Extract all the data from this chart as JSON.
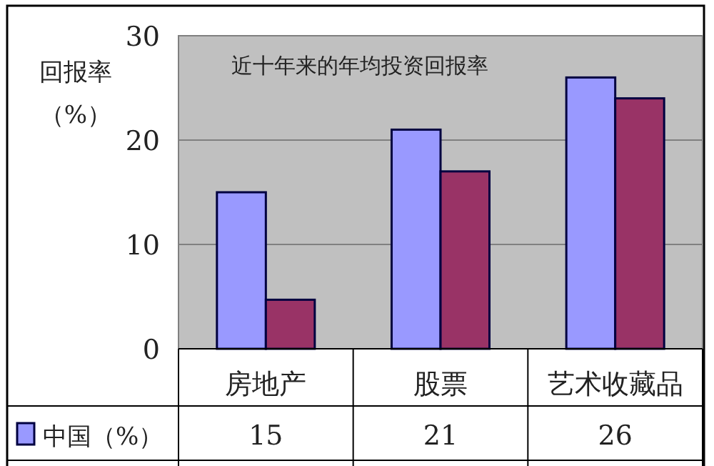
{
  "chart_data": {
    "type": "bar",
    "title": "近十年来的年均投资回报率",
    "ylabel": "回报率（%）",
    "categories": [
      "房地产",
      "股票",
      "艺术收藏品"
    ],
    "series": [
      {
        "name": "中国（%）",
        "color": "#9999ff",
        "values": [
          15,
          21,
          26
        ],
        "value_labels": [
          "15",
          "21",
          "26"
        ]
      },
      {
        "color": "#993366",
        "values": [
          4.7,
          17,
          24
        ]
      }
    ],
    "ylim": [
      0,
      30
    ],
    "yticks": [
      0,
      10,
      20,
      30
    ],
    "grid": "y",
    "legend": "bottom left"
  }
}
